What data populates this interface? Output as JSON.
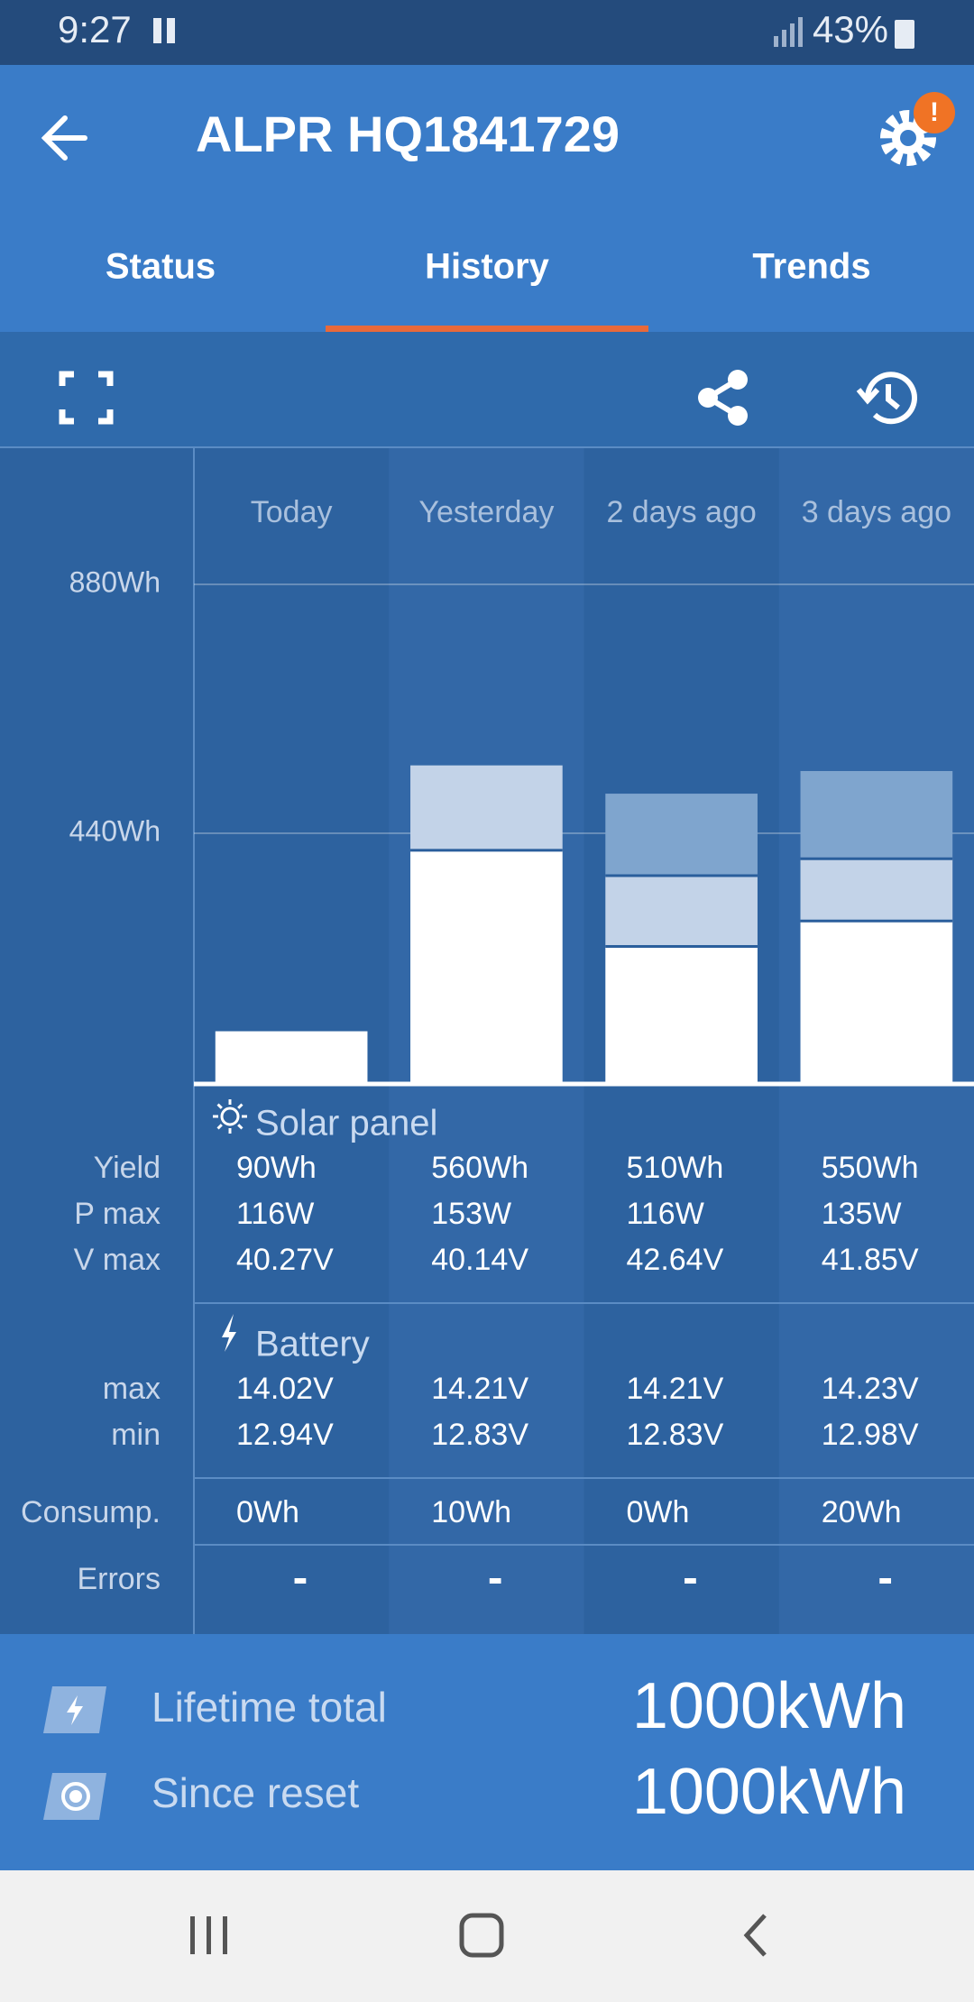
{
  "status_bar": {
    "time": "9:27",
    "battery": "43%"
  },
  "header": {
    "title": "ALPR HQ1841729",
    "settings_badge": "!"
  },
  "tabs": [
    "Status",
    "History",
    "Trends"
  ],
  "chart_data": {
    "type": "bar",
    "stacked": true,
    "categories": [
      "Today",
      "Yesterday",
      "2 days ago",
      "3 days ago"
    ],
    "series": [
      {
        "color": "#ffffff",
        "values": [
          90,
          410,
          240,
          285
        ]
      },
      {
        "color": "#c3d3e8",
        "values": [
          null,
          150,
          125,
          110
        ]
      },
      {
        "color": "#7fa5ce",
        "values": [
          null,
          null,
          145,
          155
        ]
      }
    ],
    "ylim": [
      0,
      880
    ],
    "yticks": [
      {
        "value": 440,
        "label": "440Wh"
      },
      {
        "value": 880,
        "label": "880Wh"
      }
    ],
    "grid": true
  },
  "table": {
    "sections": [
      {
        "title": "Solar panel",
        "rows": [
          {
            "label": "Yield",
            "cells": [
              "90Wh",
              "560Wh",
              "510Wh",
              "550Wh"
            ]
          },
          {
            "label": "P max",
            "cells": [
              "116W",
              "153W",
              "116W",
              "135W"
            ]
          },
          {
            "label": "V max",
            "cells": [
              "40.27V",
              "40.14V",
              "42.64V",
              "41.85V"
            ]
          }
        ]
      },
      {
        "title": "Battery",
        "rows": [
          {
            "label": "max",
            "cells": [
              "14.02V",
              "14.21V",
              "14.21V",
              "14.23V"
            ]
          },
          {
            "label": "min",
            "cells": [
              "12.94V",
              "12.83V",
              "12.83V",
              "12.98V"
            ]
          }
        ]
      },
      {
        "rows": [
          {
            "label": "Consump.",
            "cells": [
              "0Wh",
              "10Wh",
              "0Wh",
              "20Wh"
            ]
          }
        ]
      },
      {
        "rows": [
          {
            "label": "Errors",
            "cells": [
              "-",
              "-",
              "-",
              "-"
            ]
          }
        ]
      }
    ]
  },
  "footer": {
    "rows": [
      {
        "label": "Lifetime total",
        "value": "1000kWh"
      },
      {
        "label": "Since reset",
        "value": "1000kWh"
      }
    ]
  }
}
